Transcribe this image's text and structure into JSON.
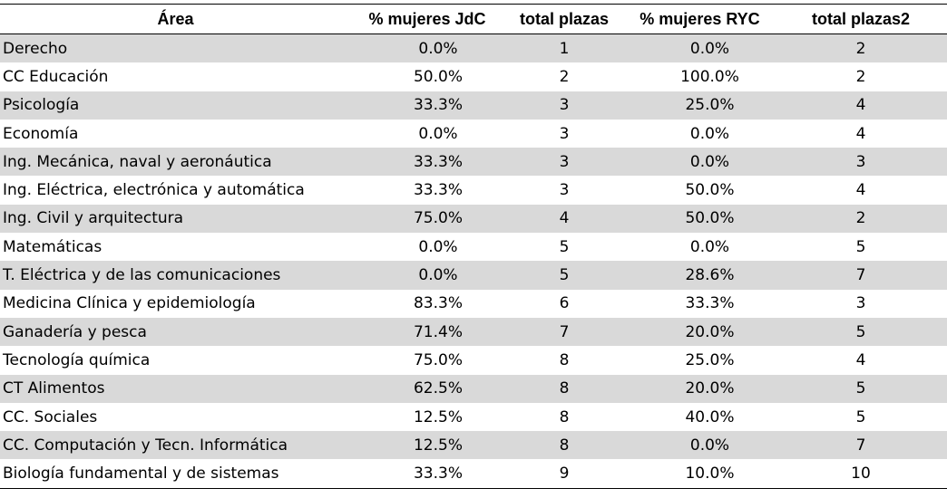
{
  "table": {
    "headers": [
      "Área",
      "% mujeres JdC",
      "total plazas",
      "% mujeres RYC",
      "total plazas2"
    ],
    "rows": [
      [
        "Derecho",
        "0.0%",
        "1",
        "0.0%",
        "2"
      ],
      [
        "CC Educación",
        "50.0%",
        "2",
        "100.0%",
        "2"
      ],
      [
        "Psicología",
        "33.3%",
        "3",
        "25.0%",
        "4"
      ],
      [
        "Economía",
        "0.0%",
        "3",
        "0.0%",
        "4"
      ],
      [
        "Ing. Mecánica, naval y aeronáutica",
        "33.3%",
        "3",
        "0.0%",
        "3"
      ],
      [
        "Ing. Eléctrica, electrónica y automática",
        "33.3%",
        "3",
        "50.0%",
        "4"
      ],
      [
        "Ing. Civil y arquitectura",
        "75.0%",
        "4",
        "50.0%",
        "2"
      ],
      [
        "Matemáticas",
        "0.0%",
        "5",
        "0.0%",
        "5"
      ],
      [
        "T. Eléctrica y de las comunicaciones",
        "0.0%",
        "5",
        "28.6%",
        "7"
      ],
      [
        "Medicina Clínica y epidemiología",
        "83.3%",
        "6",
        "33.3%",
        "3"
      ],
      [
        "Ganadería y pesca",
        "71.4%",
        "7",
        "20.0%",
        "5"
      ],
      [
        "Tecnología química",
        "75.0%",
        "8",
        "25.0%",
        "4"
      ],
      [
        "CT Alimentos",
        "62.5%",
        "8",
        "20.0%",
        "5"
      ],
      [
        "CC. Sociales",
        "12.5%",
        "8",
        "40.0%",
        "5"
      ],
      [
        "CC. Computación y Tecn. Informática",
        "12.5%",
        "8",
        "0.0%",
        "7"
      ],
      [
        "Biología fundamental y de sistemas",
        "33.3%",
        "9",
        "10.0%",
        "10"
      ]
    ]
  },
  "colors": {
    "band": "#d9d9d9",
    "background": "#ffffff",
    "rule": "#000000"
  }
}
